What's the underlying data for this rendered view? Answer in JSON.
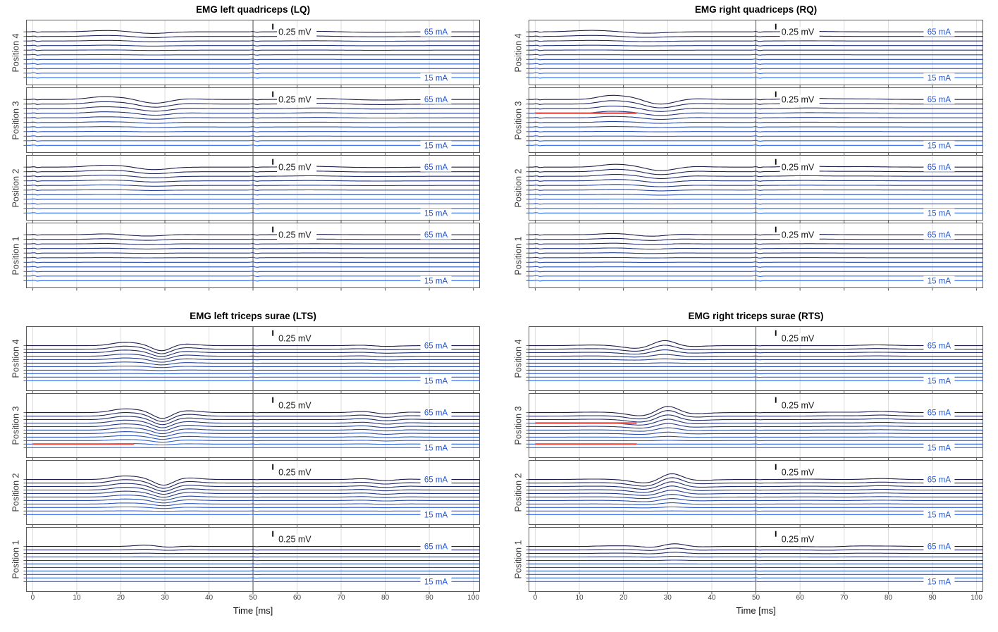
{
  "chart_data": {
    "type": "line",
    "description": "Grid of 4 EMG subplots; each subplot has 4 stacked panels (Position 4 to Position 1), each panel shows 11 averaged EMG traces for stimulation currents 15-65 mA (5 mA steps, bottom=15 mA light blue, top=65 mA dark navy), offset vertically. Red flat segments mark excluded traces (0-23 ms). Dark vertical line at 50 ms.",
    "x": {
      "label": "Time [ms]",
      "min": 0,
      "max": 100,
      "ticks": [
        0,
        10,
        20,
        30,
        40,
        50,
        60,
        70,
        80,
        90,
        100
      ],
      "stim_marker_ms": 50,
      "grid": true
    },
    "currents_mA": {
      "min": 15,
      "max": 65,
      "step": 5,
      "top_label": "65 mA",
      "bottom_label": "15 mA"
    },
    "scalebar": {
      "label": "0.25 mV",
      "t_ms": 55
    },
    "colors": {
      "trace_dark": "#1f1f4e",
      "trace_bright": "#2e6bf0",
      "label_blue": "#2257d6",
      "red": "#f0534c",
      "grid": "#dcdcdc",
      "stim_line": "#4a4a4a",
      "box": "#5a5a5a",
      "text": "#1a1a1a",
      "tick_text": "#404040"
    },
    "groups": [
      {
        "id": "LQ",
        "title": "EMG left quadriceps (LQ)",
        "col": 0,
        "row": 0,
        "artifacts": [
          {
            "t": 0.7,
            "w": 0.3,
            "a": 0.1
          },
          {
            "t": 50.4,
            "w": 0.3,
            "a": 0.1
          }
        ],
        "panels": [
          {
            "label": "Position 4",
            "events": [
              {
                "t": 17,
                "w": 4,
                "a": 0.3
              },
              {
                "t": 27,
                "w": 3.5,
                "a": -0.35
              },
              {
                "t": 64,
                "w": 4,
                "a": 0.12
              },
              {
                "t": 78,
                "w": 5,
                "a": -0.1
              }
            ],
            "gains": [
              1,
              0.75,
              0.5,
              0.32,
              0.2,
              0.11,
              0.05,
              0.02,
              0,
              0,
              0
            ],
            "red_lines": []
          },
          {
            "label": "Position 3",
            "events": [
              {
                "t": 15.5,
                "w": 3,
                "a": 0.55
              },
              {
                "t": 20.5,
                "w": 2.5,
                "a": 0.3
              },
              {
                "t": 28,
                "w": 3.2,
                "a": -0.85
              },
              {
                "t": 34,
                "w": 3.5,
                "a": 0.18
              },
              {
                "t": 65,
                "w": 4.5,
                "a": 0.22
              },
              {
                "t": 79,
                "w": 5,
                "a": -0.12
              }
            ],
            "gains": [
              1,
              0.85,
              0.68,
              0.52,
              0.38,
              0.24,
              0.14,
              0.07,
              0.03,
              0,
              0
            ],
            "red_lines": []
          },
          {
            "label": "Position 2",
            "events": [
              {
                "t": 16,
                "w": 3.5,
                "a": 0.4
              },
              {
                "t": 21,
                "w": 2.5,
                "a": 0.15
              },
              {
                "t": 27.5,
                "w": 3.5,
                "a": -0.55
              },
              {
                "t": 63,
                "w": 4.5,
                "a": 0.18
              },
              {
                "t": 78,
                "w": 5,
                "a": -0.08
              }
            ],
            "gains": [
              1,
              0.8,
              0.6,
              0.44,
              0.3,
              0.18,
              0.1,
              0.04,
              0.01,
              0,
              0
            ],
            "red_lines": []
          },
          {
            "label": "Position 1",
            "events": [
              {
                "t": 17,
                "w": 3.5,
                "a": 0.2
              },
              {
                "t": 26,
                "w": 4,
                "a": -0.28
              },
              {
                "t": 33,
                "w": 3,
                "a": 0.08
              },
              {
                "t": 64,
                "w": 5,
                "a": 0.08
              }
            ],
            "gains": [
              1,
              0.78,
              0.55,
              0.36,
              0.22,
              0.12,
              0.05,
              0.02,
              0,
              0,
              0
            ],
            "red_lines": []
          }
        ]
      },
      {
        "id": "RQ",
        "title": "EMG right quadriceps (RQ)",
        "col": 1,
        "row": 0,
        "artifacts": [
          {
            "t": 0.7,
            "w": 0.3,
            "a": 0.1
          },
          {
            "t": 50.4,
            "w": 0.3,
            "a": 0.1
          }
        ],
        "panels": [
          {
            "label": "Position 4",
            "events": [
              {
                "t": 13,
                "w": 4.5,
                "a": 0.32
              },
              {
                "t": 25,
                "w": 4,
                "a": -0.3
              },
              {
                "t": 62,
                "w": 5,
                "a": 0.1
              }
            ],
            "gains": [
              1,
              0.7,
              0.45,
              0.26,
              0.13,
              0.05,
              0.01,
              0,
              0,
              0,
              0
            ],
            "red_lines": []
          },
          {
            "label": "Position 3",
            "events": [
              {
                "t": 17,
                "w": 2.8,
                "a": 0.85
              },
              {
                "t": 22,
                "w": 2.4,
                "a": 0.45
              },
              {
                "t": 28.5,
                "w": 3.4,
                "a": -1.05
              },
              {
                "t": 35,
                "w": 3.5,
                "a": 0.22
              },
              {
                "t": 62,
                "w": 4.5,
                "a": 0.25
              },
              {
                "t": 74,
                "w": 5,
                "a": 0.12
              }
            ],
            "gains": [
              1,
              0.82,
              0.62,
              0.48,
              0.34,
              0.2,
              0.11,
              0.05,
              0.02,
              0,
              0
            ],
            "red_lines": [
              {
                "trace": 3,
                "t0": 0,
                "t1": 23
              }
            ]
          },
          {
            "label": "Position 2",
            "events": [
              {
                "t": 18,
                "w": 3.2,
                "a": 0.6
              },
              {
                "t": 23,
                "w": 2.5,
                "a": 0.2
              },
              {
                "t": 28.5,
                "w": 3.5,
                "a": -0.8
              },
              {
                "t": 35,
                "w": 3.5,
                "a": 0.18
              },
              {
                "t": 61,
                "w": 4.5,
                "a": 0.18
              },
              {
                "t": 74,
                "w": 5,
                "a": 0.1
              }
            ],
            "gains": [
              1,
              0.84,
              0.66,
              0.5,
              0.36,
              0.23,
              0.13,
              0.06,
              0.02,
              0,
              0
            ],
            "red_lines": []
          },
          {
            "label": "Position 1",
            "events": [
              {
                "t": 18,
                "w": 3.5,
                "a": 0.28
              },
              {
                "t": 26.5,
                "w": 3.5,
                "a": -0.35
              },
              {
                "t": 32,
                "w": 3,
                "a": 0.15
              },
              {
                "t": 62,
                "w": 5,
                "a": 0.1
              }
            ],
            "gains": [
              1,
              0.8,
              0.6,
              0.44,
              0.3,
              0.18,
              0.09,
              0.03,
              0,
              0,
              0
            ],
            "red_lines": []
          }
        ]
      },
      {
        "id": "LTS",
        "title": "EMG left triceps surae (LTS)",
        "col": 0,
        "row": 1,
        "artifacts": [
          {
            "t": 50.4,
            "w": 0.3,
            "a": 0.05
          }
        ],
        "panels": [
          {
            "label": "Position 4",
            "events": [
              {
                "t": 20.5,
                "w": 2.6,
                "a": 0.9
              },
              {
                "t": 24.5,
                "w": 2,
                "a": 0.35
              },
              {
                "t": 29.3,
                "w": 2.1,
                "a": -1.55
              },
              {
                "t": 34.5,
                "w": 2.8,
                "a": 0.5
              },
              {
                "t": 75.5,
                "w": 2.8,
                "a": 0.2
              },
              {
                "t": 79.5,
                "w": 3,
                "a": -0.25
              }
            ],
            "gains": [
              1,
              0.9,
              0.78,
              0.64,
              0.5,
              0.34,
              0.18,
              0.08,
              0.03,
              0,
              0
            ],
            "red_lines": []
          },
          {
            "label": "Position 3",
            "events": [
              {
                "t": 20.5,
                "w": 2.7,
                "a": 1.0
              },
              {
                "t": 24.5,
                "w": 2,
                "a": 0.4
              },
              {
                "t": 29.5,
                "w": 2,
                "a": -1.75
              },
              {
                "t": 35,
                "w": 2.8,
                "a": 0.55
              },
              {
                "t": 75.5,
                "w": 2.6,
                "a": 0.38
              },
              {
                "t": 80,
                "w": 2.6,
                "a": -0.5
              },
              {
                "t": 84.5,
                "w": 2.8,
                "a": 0.18
              }
            ],
            "gains": [
              1,
              0.95,
              0.88,
              0.8,
              0.72,
              0.62,
              0.52,
              0.4,
              0.28,
              0.15,
              0.01
            ],
            "red_lines": [
              {
                "trace": 9,
                "t0": 0,
                "t1": 23
              }
            ]
          },
          {
            "label": "Position 2",
            "events": [
              {
                "t": 20.5,
                "w": 2.7,
                "a": 0.95
              },
              {
                "t": 24.5,
                "w": 2,
                "a": 0.38
              },
              {
                "t": 29.8,
                "w": 2.1,
                "a": -1.7
              },
              {
                "t": 35,
                "w": 2.8,
                "a": 0.5
              },
              {
                "t": 75.5,
                "w": 2.6,
                "a": 0.3
              },
              {
                "t": 79.8,
                "w": 2.6,
                "a": -0.42
              },
              {
                "t": 84,
                "w": 2.8,
                "a": 0.15
              }
            ],
            "gains": [
              1,
              0.95,
              0.86,
              0.76,
              0.66,
              0.55,
              0.43,
              0.3,
              0.17,
              0.04,
              0
            ],
            "red_lines": []
          },
          {
            "label": "Position 1",
            "events": [
              {
                "t": 26,
                "w": 2.8,
                "a": 0.4
              },
              {
                "t": 30.5,
                "w": 2.4,
                "a": -0.3
              },
              {
                "t": 34,
                "w": 2.5,
                "a": 0.1
              }
            ],
            "gains": [
              1,
              0.55,
              0.18,
              0.05,
              0,
              0,
              0,
              0,
              0,
              0,
              0
            ],
            "red_lines": []
          }
        ]
      },
      {
        "id": "RTS",
        "title": "EMG right triceps surae (RTS)",
        "col": 1,
        "row": 1,
        "artifacts": [
          {
            "t": 50.4,
            "w": 0.3,
            "a": 0.05
          }
        ],
        "panels": [
          {
            "label": "Position 4",
            "events": [
              {
                "t": 13,
                "w": 4,
                "a": 0.18
              },
              {
                "t": 23,
                "w": 3,
                "a": -0.8
              },
              {
                "t": 29.3,
                "w": 2.5,
                "a": 1.6
              },
              {
                "t": 34.5,
                "w": 3,
                "a": -0.3
              },
              {
                "t": 77.5,
                "w": 3.5,
                "a": 0.22
              }
            ],
            "gains": [
              1,
              0.78,
              0.55,
              0.34,
              0.16,
              0.06,
              0.01,
              0,
              0,
              0,
              0
            ],
            "red_lines": []
          },
          {
            "label": "Position 3",
            "events": [
              {
                "t": 13.5,
                "w": 4,
                "a": 0.14
              },
              {
                "t": 24,
                "w": 3,
                "a": -0.95
              },
              {
                "t": 30,
                "w": 2.3,
                "a": 1.95
              },
              {
                "t": 35.8,
                "w": 3,
                "a": -0.35
              },
              {
                "t": 68,
                "w": 4,
                "a": 0.12
              },
              {
                "t": 78.5,
                "w": 3.2,
                "a": 0.32
              }
            ],
            "gains": [
              1,
              0.9,
              0.76,
              0.62,
              0.5,
              0.37,
              0.24,
              0.12,
              0.04,
              0,
              0
            ],
            "red_lines": [
              {
                "trace": 3,
                "t0": 0,
                "t1": 23
              },
              {
                "trace": 9,
                "t0": 0,
                "t1": 23
              }
            ]
          },
          {
            "label": "Position 2",
            "events": [
              {
                "t": 13.5,
                "w": 4,
                "a": 0.12
              },
              {
                "t": 25,
                "w": 3.1,
                "a": -1.0
              },
              {
                "t": 30.8,
                "w": 2.3,
                "a": 1.85
              },
              {
                "t": 37,
                "w": 3,
                "a": -0.25
              },
              {
                "t": 61.5,
                "w": 4,
                "a": 0.12
              },
              {
                "t": 78.5,
                "w": 3.2,
                "a": 0.28
              }
            ],
            "gains": [
              1,
              0.93,
              0.82,
              0.7,
              0.58,
              0.46,
              0.34,
              0.22,
              0.1,
              0.02,
              0
            ],
            "red_lines": []
          },
          {
            "label": "Position 1",
            "events": [
              {
                "t": 16,
                "w": 2.5,
                "a": 0.15
              },
              {
                "t": 21.5,
                "w": 2.5,
                "a": 0.18
              },
              {
                "t": 26.5,
                "w": 2.6,
                "a": -0.3
              },
              {
                "t": 31.5,
                "w": 2.4,
                "a": 0.85
              },
              {
                "t": 36,
                "w": 2.8,
                "a": -0.12
              },
              {
                "t": 67.5,
                "w": 3.5,
                "a": -0.15
              },
              {
                "t": 72.5,
                "w": 3.5,
                "a": 0.18
              },
              {
                "t": 80,
                "w": 3.5,
                "a": 0.1
              }
            ],
            "gains": [
              1,
              0.7,
              0.45,
              0.26,
              0.12,
              0.04,
              0,
              0,
              0,
              0,
              0
            ],
            "red_lines": []
          }
        ]
      }
    ]
  }
}
